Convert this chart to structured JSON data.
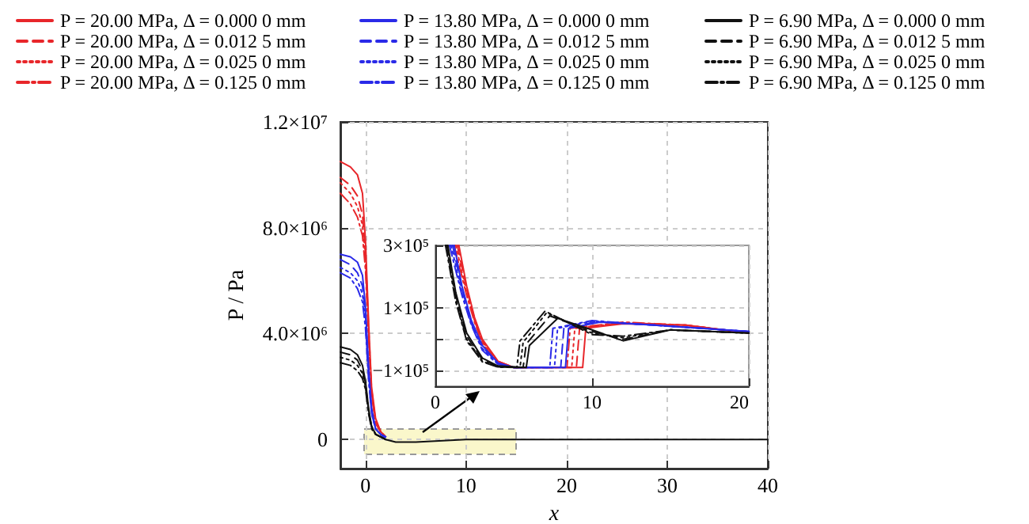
{
  "chart_data": [
    {
      "type": "line",
      "xlabel": "x",
      "ylabel": "P / Pa",
      "xlim": [
        -2.5,
        40
      ],
      "xticks": [
        0,
        10,
        20,
        30,
        40
      ],
      "ylim": [
        -1100000,
        12000000
      ],
      "yticks": [
        0,
        {
          "value": 4000000,
          "label": "4.0×10⁶"
        },
        {
          "value": 8000000,
          "label": "8.0×10⁶"
        },
        {
          "value": 12000000,
          "label": "1.2×10⁷"
        }
      ],
      "grid": true,
      "legend": "top",
      "marker": "none",
      "x": [
        -2.5,
        -1.5,
        -0.8,
        -0.3,
        0,
        0.3,
        0.6,
        1,
        1.5,
        2,
        3,
        5,
        10,
        15,
        20,
        40
      ],
      "series": [
        {
          "name": "P = 20.00 MPa, Δ = 0.000 0 mm",
          "color": "#e8262a",
          "line_style": "solid",
          "values": [
            10500000,
            10300000,
            10000000,
            9300000,
            7500000,
            4500000,
            2000000,
            800000,
            300000,
            100000,
            null,
            null,
            null,
            null,
            null,
            null
          ]
        },
        {
          "name": "P = 20.00 MPa, Δ = 0.012 5 mm",
          "color": "#e8262a",
          "line_style": "dashed",
          "values": [
            9900000,
            9600000,
            9200000,
            8500000,
            7000000,
            4300000,
            1900000,
            700000,
            300000,
            100000,
            null,
            null,
            null,
            null,
            null,
            null
          ]
        },
        {
          "name": "P = 20.00 MPa, Δ = 0.025 0 mm",
          "color": "#e8262a",
          "line_style": "dotted",
          "values": [
            9700000,
            9300000,
            8800000,
            8100000,
            6700000,
            4100000,
            1800000,
            700000,
            300000,
            100000,
            null,
            null,
            null,
            null,
            null,
            null
          ]
        },
        {
          "name": "P = 20.00 MPa, Δ = 0.125 0 mm",
          "color": "#e8262a",
          "line_style": "dashdot",
          "values": [
            9300000,
            8900000,
            8400000,
            7700000,
            6400000,
            3900000,
            1700000,
            600000,
            300000,
            100000,
            null,
            null,
            null,
            null,
            null,
            null
          ]
        },
        {
          "name": "P = 13.80 MPa, Δ = 0.000 0 mm",
          "color": "#2a2ae8",
          "line_style": "solid",
          "values": [
            7000000,
            6900000,
            6700000,
            6200000,
            5000000,
            2800000,
            1200000,
            400000,
            200000,
            100000,
            null,
            null,
            null,
            null,
            null,
            null
          ]
        },
        {
          "name": "P = 13.80 MPa, Δ = 0.012 5 mm",
          "color": "#2a2ae8",
          "line_style": "dashed",
          "values": [
            6800000,
            6600000,
            6300000,
            5800000,
            4700000,
            2600000,
            1100000,
            400000,
            200000,
            100000,
            null,
            null,
            null,
            null,
            null,
            null
          ]
        },
        {
          "name": "P = 13.80 MPa, Δ = 0.025 0 mm",
          "color": "#2a2ae8",
          "line_style": "dotted",
          "values": [
            6500000,
            6300000,
            6000000,
            5500000,
            4400000,
            2400000,
            1000000,
            400000,
            200000,
            100000,
            null,
            null,
            null,
            null,
            null,
            null
          ]
        },
        {
          "name": "P = 13.80 MPa, Δ = 0.125 0 mm",
          "color": "#2a2ae8",
          "line_style": "dashdot",
          "values": [
            6300000,
            6100000,
            5700000,
            5200000,
            4200000,
            2300000,
            1000000,
            400000,
            200000,
            0,
            null,
            null,
            null,
            null,
            null,
            null
          ]
        },
        {
          "name": "P = 6.90 MPa, Δ = 0.000 0 mm",
          "color": "#111111",
          "line_style": "solid",
          "values": [
            3500000,
            3400000,
            3200000,
            2800000,
            2200000,
            1200000,
            500000,
            200000,
            100000,
            0,
            -100000,
            -100000,
            0,
            0,
            0,
            0
          ]
        },
        {
          "name": "P = 6.90 MPa, Δ = 0.012 5 mm",
          "color": "#111111",
          "line_style": "dashed",
          "values": [
            3300000,
            3200000,
            3000000,
            2600000,
            2100000,
            1100000,
            500000,
            200000,
            100000,
            0,
            null,
            null,
            null,
            null,
            null,
            null
          ]
        },
        {
          "name": "P = 6.90 MPa, Δ = 0.025 0 mm",
          "color": "#111111",
          "line_style": "dotted",
          "values": [
            3100000,
            3000000,
            2800000,
            2500000,
            2000000,
            1000000,
            500000,
            200000,
            100000,
            0,
            null,
            null,
            null,
            null,
            null,
            null
          ]
        },
        {
          "name": "P = 6.90 MPa, Δ = 0.125 0 mm",
          "color": "#111111",
          "line_style": "dashdot",
          "values": [
            2900000,
            2800000,
            2600000,
            2300000,
            1900000,
            1000000,
            400000,
            200000,
            100000,
            0,
            null,
            null,
            null,
            null,
            null,
            null
          ]
        }
      ]
    },
    {
      "type": "line",
      "xlim": [
        0,
        20
      ],
      "xticks": [
        0,
        10,
        20
      ],
      "ylim": [
        -150000,
        300000
      ],
      "yticks": [
        {
          "value": -100000,
          "label": "−1×10⁵"
        },
        {
          "value": 0,
          "label": null
        },
        {
          "value": 100000,
          "label": "1×10⁵"
        },
        {
          "value": 200000,
          "label": null
        },
        {
          "value": 300000,
          "label": "3×10⁵"
        }
      ],
      "grid": true,
      "marker": "none",
      "series": [
        {
          "color": "#e8262a",
          "line_style": "solid",
          "x": [
            1.5,
            2,
            2.5,
            3,
            4,
            5,
            9.4,
            9.6,
            12,
            16,
            20
          ],
          "values": [
            300000,
            170000,
            70000,
            0,
            -70000,
            -90000,
            -90000,
            35000,
            50000,
            45000,
            20000
          ]
        },
        {
          "color": "#e8262a",
          "line_style": "dashed",
          "x": [
            1.4,
            2,
            2.5,
            3,
            4,
            5,
            9,
            9.2,
            12,
            16,
            20
          ],
          "values": [
            300000,
            160000,
            65000,
            -5000,
            -70000,
            -90000,
            -90000,
            35000,
            52000,
            45000,
            20000
          ]
        },
        {
          "color": "#e8262a",
          "line_style": "dotted",
          "x": [
            1.3,
            2,
            2.5,
            3,
            4,
            5,
            8.7,
            8.9,
            12,
            16,
            20
          ],
          "values": [
            300000,
            150000,
            60000,
            -10000,
            -72000,
            -90000,
            -90000,
            35000,
            53000,
            45000,
            20000
          ]
        },
        {
          "color": "#e8262a",
          "line_style": "dashdot",
          "x": [
            1.2,
            2,
            2.5,
            3,
            4,
            5,
            8.4,
            8.6,
            12,
            16,
            20
          ],
          "values": [
            300000,
            140000,
            55000,
            -15000,
            -73000,
            -90000,
            -90000,
            35000,
            55000,
            45000,
            20000
          ]
        },
        {
          "color": "#2a2ae8",
          "line_style": "solid",
          "x": [
            1.2,
            1.7,
            2.3,
            3,
            4,
            5,
            8.3,
            8.5,
            10.5,
            14,
            20
          ],
          "values": [
            300000,
            170000,
            60000,
            -20000,
            -75000,
            -90000,
            -90000,
            35000,
            55000,
            45000,
            25000
          ]
        },
        {
          "color": "#2a2ae8",
          "line_style": "dashed",
          "x": [
            1.1,
            1.7,
            2.3,
            3,
            4,
            5,
            8,
            8.2,
            10.3,
            14,
            20
          ],
          "values": [
            300000,
            160000,
            55000,
            -25000,
            -76000,
            -90000,
            -90000,
            35000,
            57000,
            45000,
            25000
          ]
        },
        {
          "color": "#2a2ae8",
          "line_style": "dotted",
          "x": [
            1.0,
            1.7,
            2.3,
            3,
            4,
            5,
            7.6,
            7.8,
            10,
            14,
            20
          ],
          "values": [
            300000,
            150000,
            50000,
            -30000,
            -78000,
            -90000,
            -90000,
            35000,
            58000,
            45000,
            25000
          ]
        },
        {
          "color": "#2a2ae8",
          "line_style": "dashdot",
          "x": [
            0.9,
            1.7,
            2.3,
            3,
            4,
            5,
            7.3,
            7.5,
            10,
            14,
            20
          ],
          "values": [
            300000,
            140000,
            45000,
            -35000,
            -80000,
            -90000,
            -90000,
            35000,
            60000,
            45000,
            25000
          ]
        },
        {
          "color": "#111111",
          "line_style": "solid",
          "x": [
            0.8,
            1.3,
            2,
            3,
            4,
            5.8,
            6,
            7.8,
            10,
            12,
            15,
            20
          ],
          "values": [
            300000,
            150000,
            20000,
            -60000,
            -85000,
            -90000,
            -20000,
            67000,
            30000,
            -5000,
            30000,
            20000
          ]
        },
        {
          "color": "#111111",
          "line_style": "dashed",
          "x": [
            0.75,
            1.3,
            2,
            3,
            4,
            5.6,
            5.8,
            7.3,
            10,
            12,
            15,
            20
          ],
          "values": [
            300000,
            140000,
            10000,
            -65000,
            -87000,
            -90000,
            -15000,
            75000,
            25000,
            0,
            30000,
            20000
          ]
        },
        {
          "color": "#111111",
          "line_style": "dotted",
          "x": [
            0.7,
            1.3,
            2,
            3,
            4,
            5.4,
            5.6,
            7.1,
            10,
            12,
            15,
            20
          ],
          "values": [
            300000,
            130000,
            0,
            -70000,
            -88000,
            -90000,
            -10000,
            85000,
            20000,
            5000,
            30000,
            20000
          ]
        },
        {
          "color": "#111111",
          "line_style": "dashdot",
          "x": [
            0.65,
            1.3,
            2,
            3,
            4,
            5.2,
            5.4,
            7,
            10,
            12,
            15,
            20
          ],
          "values": [
            300000,
            120000,
            -5000,
            -72000,
            -89000,
            -90000,
            -5000,
            90000,
            15000,
            10000,
            30000,
            20000
          ]
        }
      ]
    }
  ]
}
